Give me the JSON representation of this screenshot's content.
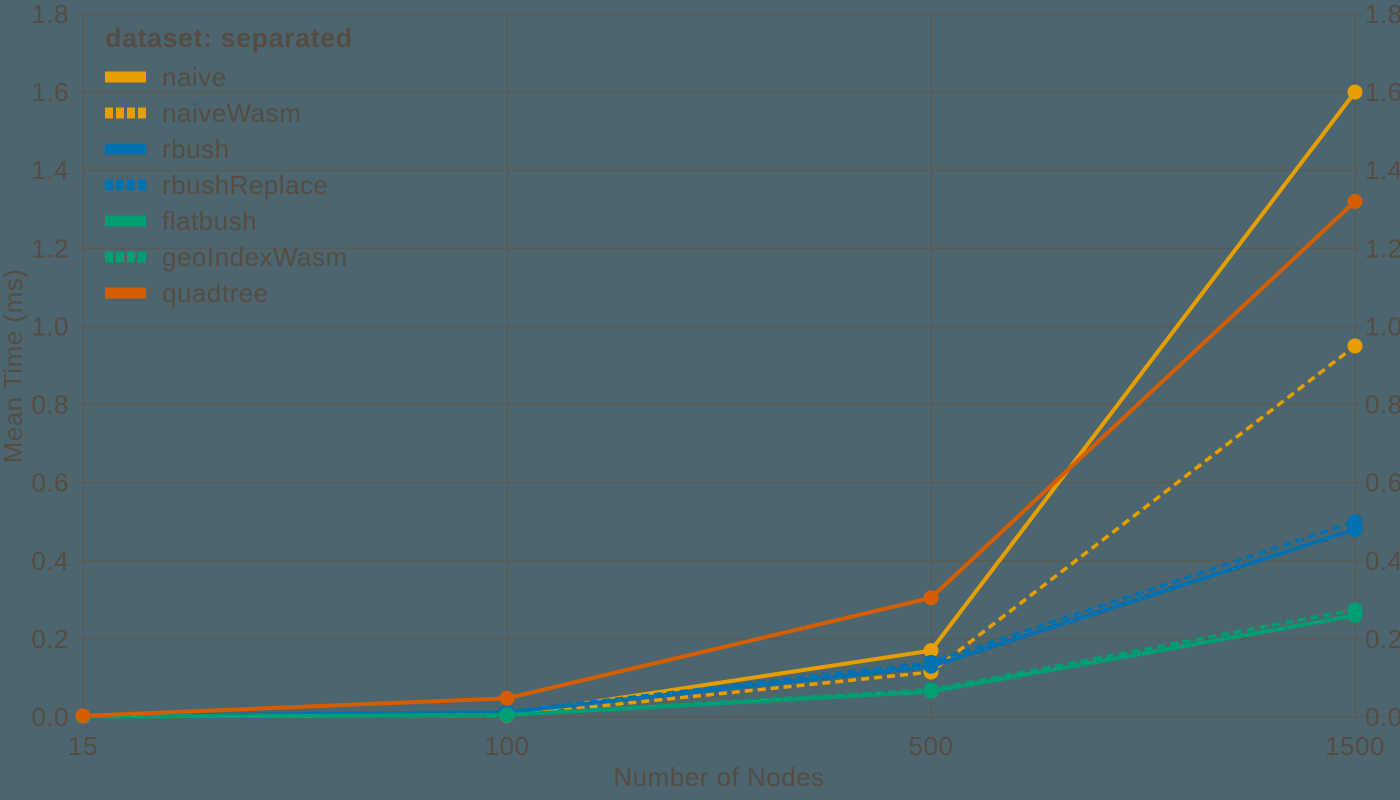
{
  "figure": {
    "background_color": "#4d656e",
    "grid_color": "#5c584e",
    "text_color": "#554c43"
  },
  "chart_data": {
    "type": "line",
    "title": "",
    "xlabel": "Number of Nodes",
    "ylabel": "Mean Time (ms)",
    "x_scale": "point",
    "categories": [
      "15",
      "100",
      "500",
      "1500"
    ],
    "y_ticks": [
      "0.0",
      "0.2",
      "0.4",
      "0.6",
      "0.8",
      "1.0",
      "1.2",
      "1.4",
      "1.6",
      "1.8"
    ],
    "ylim": [
      0,
      1.8
    ],
    "y_axis_mirrored": true,
    "grid": true,
    "markers": true,
    "legend": {
      "title": "dataset: separated",
      "position": "top-left"
    },
    "series": [
      {
        "name": "naive",
        "color": "#E69F00",
        "line_style": "solid",
        "values": [
          0.002,
          0.005,
          0.17,
          1.6
        ]
      },
      {
        "name": "naiveWasm",
        "color": "#E69F00",
        "line_style": "dashed",
        "values": [
          0.001,
          0.004,
          0.115,
          0.95
        ]
      },
      {
        "name": "rbush",
        "color": "#0072B2",
        "line_style": "solid",
        "values": [
          0.002,
          0.012,
          0.13,
          0.48
        ]
      },
      {
        "name": "rbushReplace",
        "color": "#0072B2",
        "line_style": "dashed",
        "values": [
          0.002,
          0.013,
          0.14,
          0.5
        ]
      },
      {
        "name": "flatbush",
        "color": "#009E73",
        "line_style": "solid",
        "values": [
          0.001,
          0.005,
          0.065,
          0.26
        ]
      },
      {
        "name": "geoIndexWasm",
        "color": "#009E73",
        "line_style": "dashed",
        "values": [
          0.001,
          0.005,
          0.07,
          0.275
        ]
      },
      {
        "name": "quadtree",
        "color": "#D55E00",
        "line_style": "solid",
        "values": [
          0.003,
          0.048,
          0.305,
          1.32
        ]
      }
    ]
  }
}
